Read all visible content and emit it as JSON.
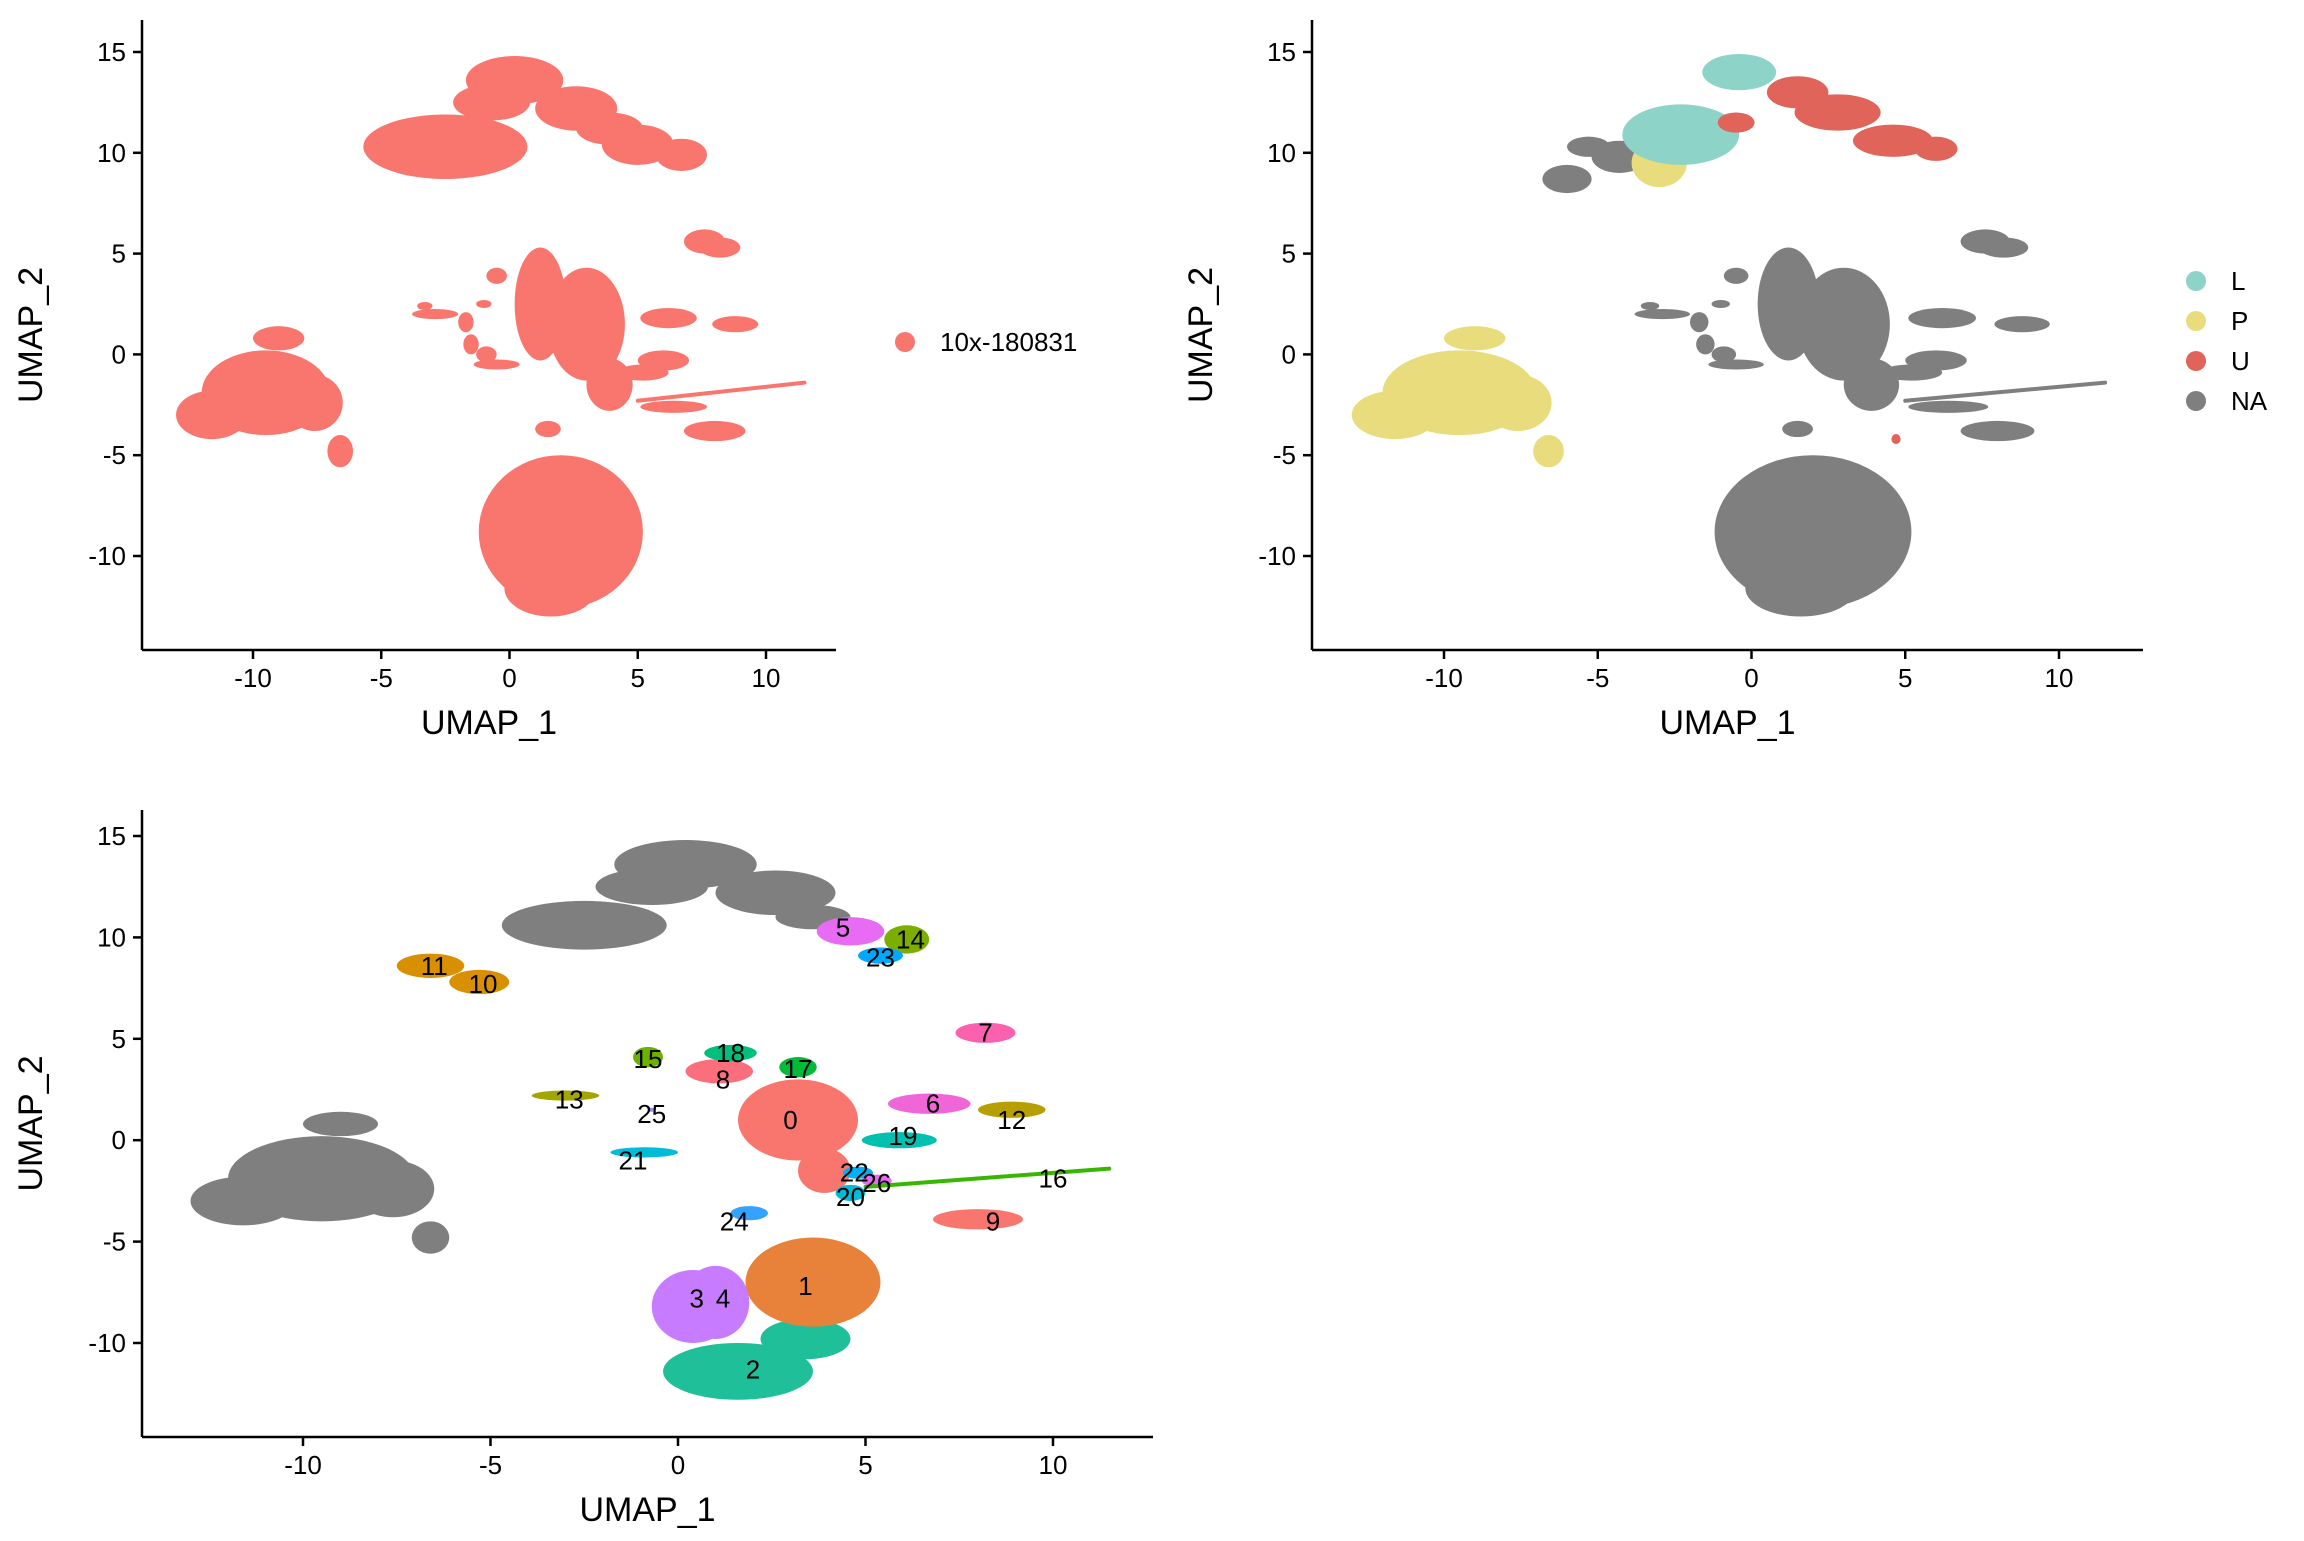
{
  "chart_data": [
    {
      "type": "scatter",
      "panel": "top-left",
      "xlabel": "UMAP_1",
      "ylabel": "UMAP_2",
      "xlim": [
        -14.5,
        12.5
      ],
      "ylim": [
        -14.5,
        16.5
      ],
      "xticks": [
        -10,
        -5,
        0,
        5,
        10
      ],
      "yticks": [
        -10,
        -5,
        0,
        5,
        10,
        15
      ],
      "legend": {
        "placement": "right",
        "entries": [
          {
            "label": "10x-180831",
            "color": "#F8766D"
          }
        ]
      },
      "grid": false,
      "colors": {
        "10x-180831": "#F8766D"
      }
    },
    {
      "type": "scatter",
      "panel": "top-right",
      "xlabel": "UMAP_1",
      "ylabel": "UMAP_2",
      "xlim": [
        -14.5,
        12.5
      ],
      "ylim": [
        -14.5,
        16.5
      ],
      "xticks": [
        -10,
        -5,
        0,
        5,
        10
      ],
      "yticks": [
        -10,
        -5,
        0,
        5,
        10,
        15
      ],
      "legend": {
        "placement": "right",
        "entries": [
          {
            "label": "L",
            "color": "#8DD3C7"
          },
          {
            "label": "P",
            "color": "#E9DC7C"
          },
          {
            "label": "U",
            "color": "#E0645A"
          },
          {
            "label": "NA",
            "color": "#7F7F7F"
          }
        ]
      },
      "grid": false
    },
    {
      "type": "scatter",
      "panel": "bottom-left",
      "xlabel": "UMAP_1",
      "ylabel": "UMAP_2",
      "xlim": [
        -14.5,
        12.5
      ],
      "ylim": [
        -14.5,
        16.5
      ],
      "xticks": [
        -10,
        -5,
        0,
        5,
        10
      ],
      "yticks": [
        -10,
        -5,
        0,
        5,
        10,
        15
      ],
      "grid": false,
      "cluster_labels": [
        {
          "label": "0",
          "x": 3.0,
          "y": 1.0,
          "color": "#F8766D"
        },
        {
          "label": "1",
          "x": 3.4,
          "y": -7.2,
          "color": "#E8823A"
        },
        {
          "label": "2",
          "x": 2.0,
          "y": -11.3,
          "color": "#1FBF9A"
        },
        {
          "label": "3",
          "x": 0.5,
          "y": -7.8,
          "color": "#C77CFF"
        },
        {
          "label": "4",
          "x": 1.2,
          "y": -7.8,
          "color": "#C77CFF"
        },
        {
          "label": "5",
          "x": 4.4,
          "y": 10.5,
          "color": "#E76BF3"
        },
        {
          "label": "6",
          "x": 6.8,
          "y": 1.8,
          "color": "#F066D8"
        },
        {
          "label": "7",
          "x": 8.2,
          "y": 5.3,
          "color": "#FC61B0"
        },
        {
          "label": "8",
          "x": 1.2,
          "y": 3.0,
          "color": "#FB6F7C"
        },
        {
          "label": "9",
          "x": 8.4,
          "y": -4.0,
          "color": "#F8766D"
        },
        {
          "label": "10",
          "x": -5.2,
          "y": 7.7,
          "color": "#D89000"
        },
        {
          "label": "11",
          "x": -6.5,
          "y": 8.6,
          "color": "#D89000"
        },
        {
          "label": "12",
          "x": 8.9,
          "y": 1.0,
          "color": "#B79F00"
        },
        {
          "label": "13",
          "x": -2.9,
          "y": 2.0,
          "color": "#A3A500"
        },
        {
          "label": "14",
          "x": 6.2,
          "y": 9.9,
          "color": "#7CAE00"
        },
        {
          "label": "15",
          "x": -0.8,
          "y": 4.0,
          "color": "#6BB100"
        },
        {
          "label": "16",
          "x": 10.0,
          "y": -1.9,
          "color": "#39B600"
        },
        {
          "label": "17",
          "x": 3.2,
          "y": 3.5,
          "color": "#00BA38"
        },
        {
          "label": "18",
          "x": 1.4,
          "y": 4.3,
          "color": "#00BF7D"
        },
        {
          "label": "19",
          "x": 6.0,
          "y": 0.2,
          "color": "#00C0AF"
        },
        {
          "label": "20",
          "x": 4.6,
          "y": -2.8,
          "color": "#00BCD8"
        },
        {
          "label": "21",
          "x": -1.2,
          "y": -1.0,
          "color": "#00BCD8"
        },
        {
          "label": "22",
          "x": 4.7,
          "y": -1.6,
          "color": "#00B0F6"
        },
        {
          "label": "23",
          "x": 5.4,
          "y": 9.0,
          "color": "#00A9FF"
        },
        {
          "label": "24",
          "x": 1.5,
          "y": -4.0,
          "color": "#35A2FF"
        },
        {
          "label": "25",
          "x": -0.7,
          "y": 1.3,
          "color": "#9590FF"
        },
        {
          "label": "26",
          "x": 5.3,
          "y": -2.1,
          "color": "#E76BF3"
        }
      ]
    }
  ]
}
